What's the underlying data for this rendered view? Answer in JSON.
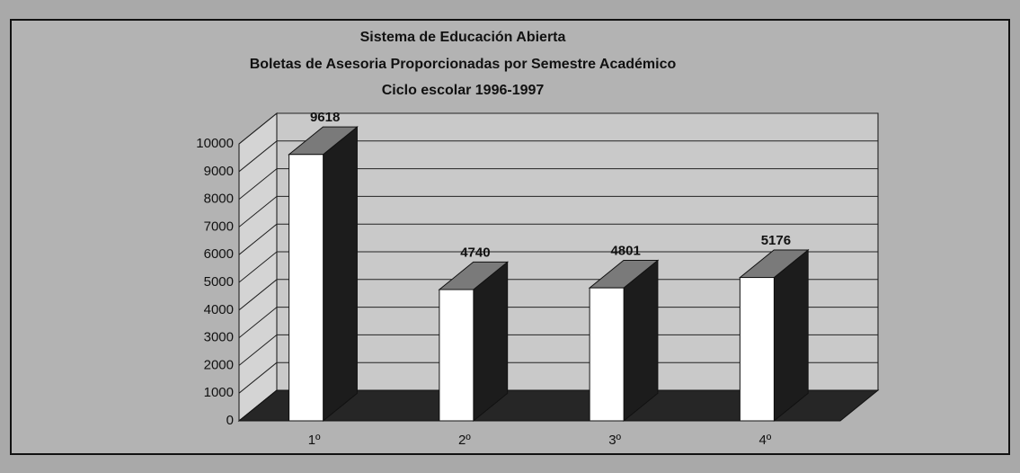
{
  "chart_data": {
    "type": "bar3d",
    "title": [
      "Sistema de Educación Abierta",
      "Boletas de Asesoria Proporcionadas por Semestre Académico",
      "Ciclo escolar 1996-1997"
    ],
    "categories": [
      "1º",
      "2º",
      "3º",
      "4º"
    ],
    "values": [
      9618,
      4740,
      4801,
      5176
    ],
    "color": "#ffffff",
    "side_color": "#1c1c1c",
    "top_color": "#7a7a7a",
    "floor_color": "#262626",
    "ylim": [
      0,
      10000
    ],
    "yticks": [
      0,
      1000,
      2000,
      3000,
      4000,
      5000,
      6000,
      7000,
      8000,
      9000,
      10000
    ],
    "grid": true
  }
}
